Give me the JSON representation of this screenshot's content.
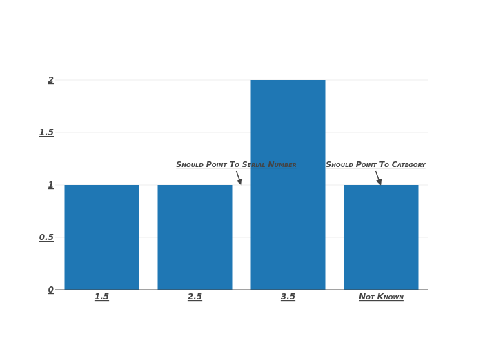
{
  "chart_data": {
    "type": "bar",
    "categories": [
      "1.5",
      "2.5",
      "3.5",
      "Not Known"
    ],
    "values": [
      1,
      1,
      2,
      1
    ],
    "ylim": [
      0,
      2
    ],
    "yticks": [
      {
        "value": 0,
        "label": "0"
      },
      {
        "value": 0.5,
        "label": "0.5"
      },
      {
        "value": 1,
        "label": "1"
      },
      {
        "value": 1.5,
        "label": "1.5"
      },
      {
        "value": 2,
        "label": "2"
      }
    ],
    "grid": true,
    "bar_color": "#1f77b4",
    "annotations": [
      {
        "text": "Should Point To Serial Number",
        "x": "2.5",
        "y": 1,
        "arrow": true
      },
      {
        "text": "Should Point To Category",
        "x": "Not Known",
        "y": 1,
        "arrow": true
      }
    ]
  }
}
